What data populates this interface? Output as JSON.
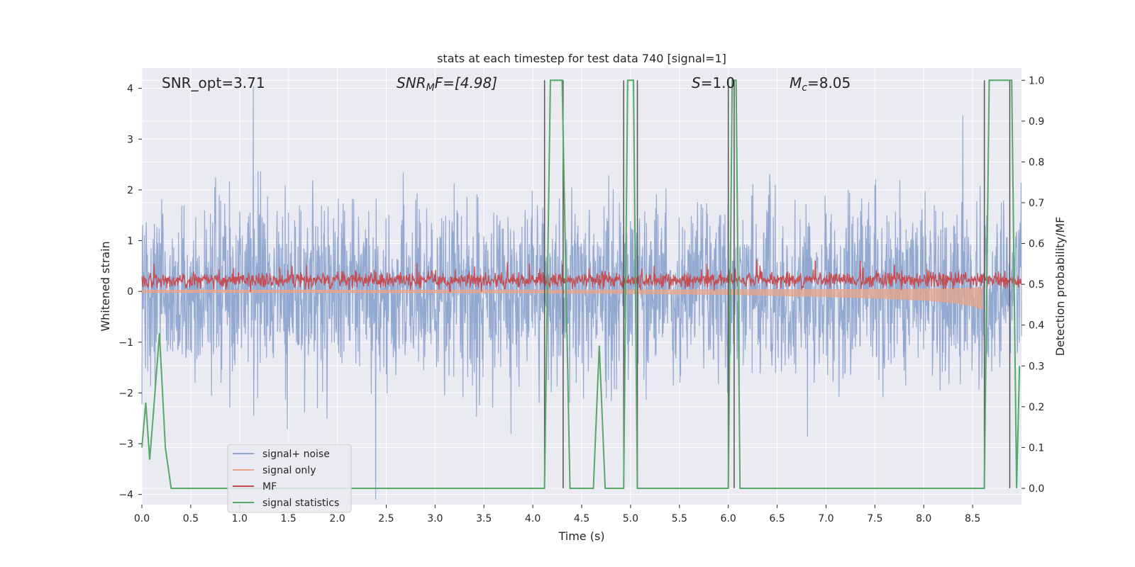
{
  "chart_data": {
    "type": "line",
    "title": "stats at each timestep for test data 740 [signal=1]",
    "xlabel": "Time (s)",
    "ylabel": "Whitened strain",
    "ylabel_right": "Detection probability/MF",
    "xlim": [
      0,
      9.0
    ],
    "ylim": [
      -4.2,
      4.4
    ],
    "ylim_right": [
      -0.04,
      1.03
    ],
    "xticks": [
      "0.0",
      "0.5",
      "1.0",
      "1.5",
      "2.0",
      "2.5",
      "3.0",
      "3.5",
      "4.0",
      "4.5",
      "5.0",
      "5.5",
      "6.0",
      "6.5",
      "7.0",
      "7.5",
      "8.0",
      "8.5"
    ],
    "yticks": [
      "4",
      "3",
      "2",
      "1",
      "0",
      "−1",
      "−2",
      "−3",
      "−4"
    ],
    "yticks_right": [
      "1.0",
      "0.9",
      "0.8",
      "0.7",
      "0.6",
      "0.5",
      "0.4",
      "0.3",
      "0.2",
      "0.1",
      "0.0"
    ],
    "annotations": {
      "snr_opt": "SNR_opt=3.71",
      "snr_mf_main": "SNR",
      "snr_mf_sub": "M",
      "snr_mf_rest": "F=[4.98]",
      "s_sym": "S",
      "s_val": "=1.0",
      "mc_sym": "M",
      "mc_sub": "c",
      "mc_val": "=8.05"
    },
    "legend": {
      "placement": "lower-left",
      "entries": [
        "signal+ noise",
        "signal only",
        "MF",
        "signal statistics"
      ]
    },
    "colors": {
      "noise": "#8fa5cf",
      "signal": "#e8a58a",
      "mf": "#c44e52",
      "stat": "#55a868",
      "vline": "#555555",
      "plot_bg": "#eaeaf2",
      "grid": "#ffffff"
    },
    "series": [
      {
        "name": "signal+ noise",
        "note_profile": "noise centered near 0, amplitude roughly ±2, peaks up to ±4",
        "center": 0.0,
        "envelope": 1.4
      },
      {
        "name": "signal only",
        "description_points": {
          "x": [
            0,
            2,
            4,
            5,
            6,
            7,
            7.5,
            8.0,
            8.3,
            8.5,
            8.6
          ],
          "amplitude": [
            0.02,
            0.02,
            0.03,
            0.04,
            0.06,
            0.1,
            0.13,
            0.17,
            0.22,
            0.28,
            0.35
          ]
        }
      },
      {
        "name": "MF",
        "center": 0.22,
        "envelope": 0.22
      },
      {
        "name": "signal statistics",
        "axis": "right",
        "x": [
          0.0,
          0.04,
          0.08,
          0.12,
          0.18,
          0.24,
          0.3,
          4.12,
          4.18,
          4.3,
          4.38,
          4.62,
          4.68,
          4.74,
          4.93,
          4.97,
          5.03,
          5.07,
          5.15,
          6.0,
          6.04,
          6.08,
          6.12,
          8.62,
          8.67,
          8.9,
          8.95,
          8.98
        ],
        "y": [
          0.1,
          0.21,
          0.07,
          0.19,
          0.38,
          0.1,
          0.0,
          0.0,
          1.0,
          1.0,
          0.0,
          0.0,
          0.35,
          0.0,
          0.0,
          1.0,
          1.0,
          0.0,
          0.0,
          0.0,
          1.0,
          1.0,
          0.0,
          0.0,
          1.0,
          1.0,
          0.0,
          0.3
        ]
      }
    ],
    "vlines": [
      4.12,
      4.31,
      4.93,
      5.07,
      6.0,
      6.06,
      8.62,
      8.88
    ]
  }
}
